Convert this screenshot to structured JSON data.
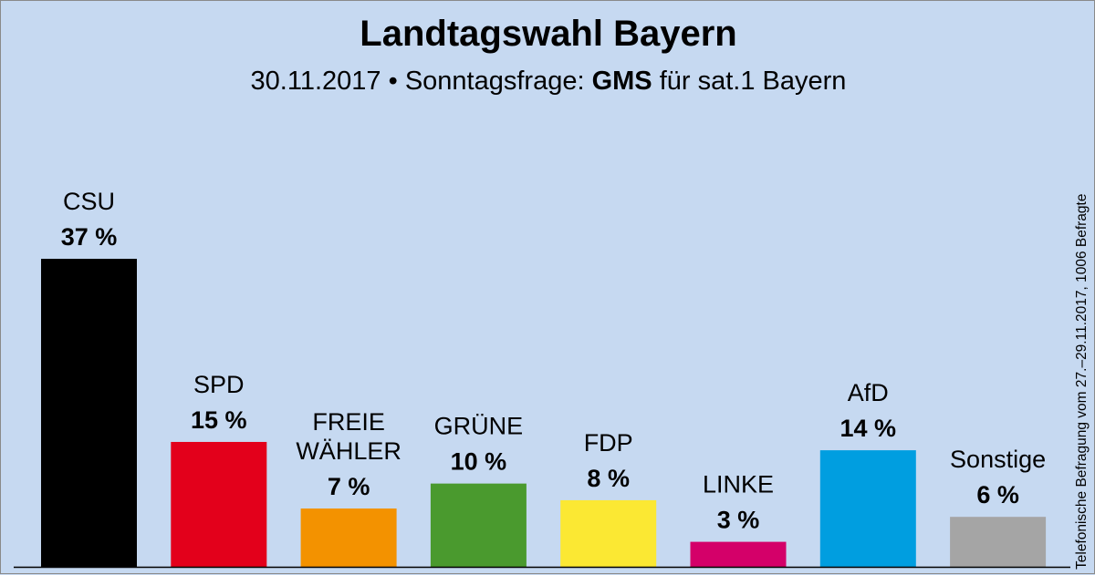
{
  "title": "Landtagswahl Bayern",
  "subtitle": {
    "date": "30.11.2017",
    "separator": "•",
    "label": "Sonntagsfrage:",
    "institute": "GMS",
    "client": "für sat.1 Bayern"
  },
  "side_note": "Telefonische Befragung vom 27.–29.11.2017, 1006 Befragte",
  "chart_data": {
    "type": "bar",
    "ylim": [
      0,
      37
    ],
    "categories": [
      "CSU",
      "SPD",
      "FREIE WÄHLER",
      "GRÜNE",
      "FDP",
      "LINKE",
      "AfD",
      "Sonstige"
    ],
    "category_lines": [
      [
        "CSU"
      ],
      [
        "SPD"
      ],
      [
        "FREIE",
        "WÄHLER"
      ],
      [
        "GRÜNE"
      ],
      [
        "FDP"
      ],
      [
        "LINKE"
      ],
      [
        "AfD"
      ],
      [
        "Sonstige"
      ]
    ],
    "values": [
      37,
      15,
      7,
      10,
      8,
      3,
      14,
      6
    ],
    "value_labels": [
      "37 %",
      "15 %",
      "7 %",
      "10 %",
      "8 %",
      "3 %",
      "14 %",
      "6 %"
    ],
    "colors": [
      "#000000",
      "#e3001b",
      "#f39200",
      "#4a9a2e",
      "#fbe833",
      "#d40069",
      "#009ee0",
      "#a5a5a5"
    ]
  }
}
